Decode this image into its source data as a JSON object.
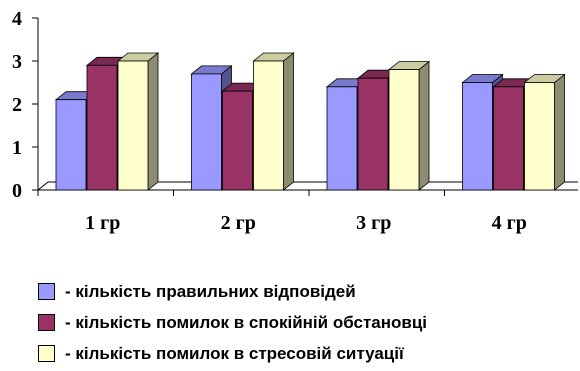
{
  "chart_data": {
    "type": "bar",
    "style": "3d-clustered-column",
    "categories": [
      "1 гр",
      "2 гр",
      "3 гр",
      "4 гр"
    ],
    "series": [
      {
        "name": "- кількість правильних відповідей",
        "color": "#9999FF",
        "values": [
          2.1,
          2.7,
          2.4,
          2.5
        ]
      },
      {
        "name": "- кількість помилок в спокійній обстановці",
        "color": "#993366",
        "values": [
          2.9,
          2.3,
          2.6,
          2.4
        ]
      },
      {
        "name": "- кількість помилок в стресовій ситуації",
        "color": "#FFFFCC",
        "values": [
          3.0,
          3.0,
          2.8,
          2.5
        ]
      }
    ],
    "yticks": [
      "0",
      "1",
      "2",
      "3",
      "4"
    ],
    "ylim": [
      0,
      4
    ],
    "grid": false,
    "legend_position": "bottom",
    "title": "",
    "xlabel": "",
    "ylabel": ""
  }
}
